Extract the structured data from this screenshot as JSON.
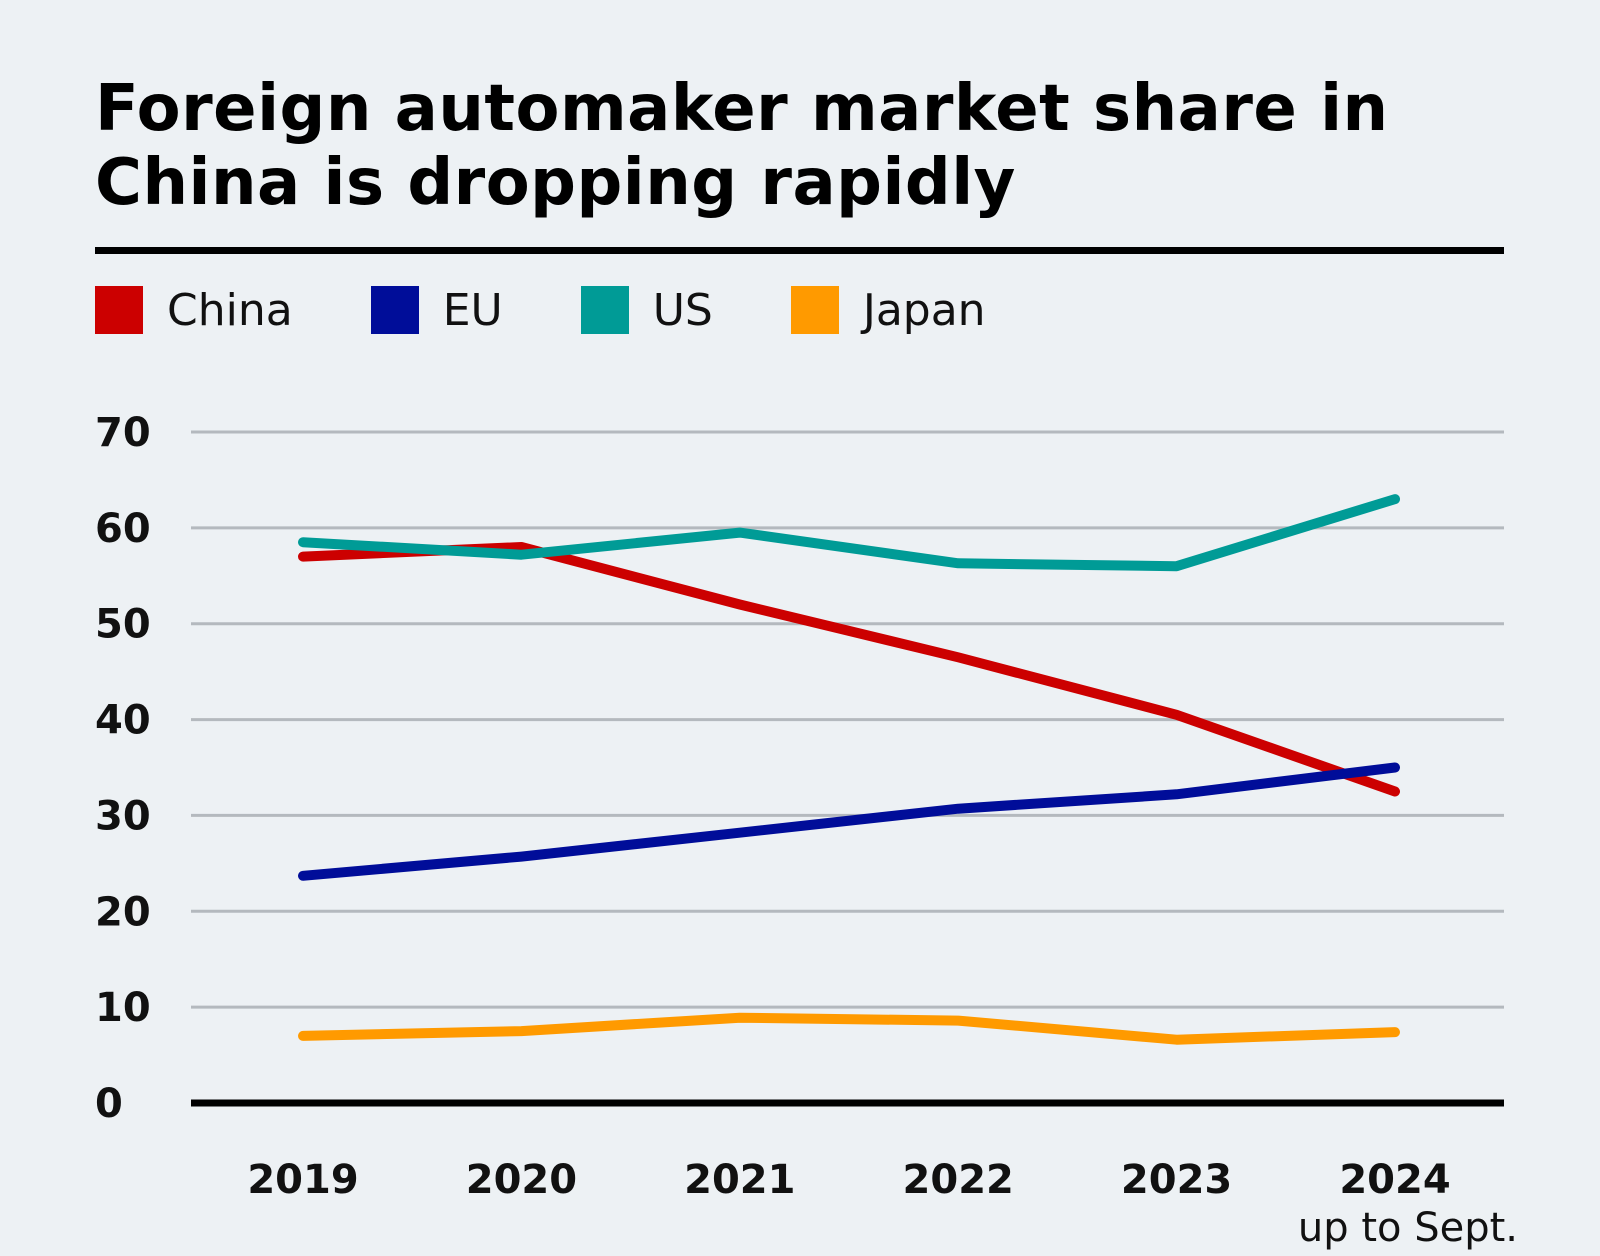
{
  "chart_data": {
    "type": "line",
    "title": "Foreign automaker market share in China is dropping rapidly",
    "x": [
      "2019",
      "2020",
      "2021",
      "2022",
      "2023",
      "2024"
    ],
    "x_note": "up to Sept.",
    "x_note_category": "2024",
    "ylim": [
      0,
      70
    ],
    "yticks": [
      0,
      10,
      20,
      30,
      40,
      50,
      60,
      70
    ],
    "grid": true,
    "legend_position": "top-left",
    "series": [
      {
        "name": "China",
        "color": "#cc0000",
        "values": [
          57.0,
          58.0,
          52.0,
          46.5,
          40.5,
          32.5
        ]
      },
      {
        "name": "EU",
        "color": "#000d99",
        "values": [
          23.7,
          25.7,
          28.2,
          30.7,
          32.2,
          35.0
        ]
      },
      {
        "name": "US",
        "color": "#009b96",
        "values": [
          58.5,
          57.2,
          59.5,
          56.3,
          56.0,
          63.0
        ]
      },
      {
        "name": "Japan",
        "color": "#ff9a00",
        "values": [
          7.0,
          7.5,
          8.9,
          8.6,
          6.6,
          7.4
        ]
      }
    ]
  }
}
